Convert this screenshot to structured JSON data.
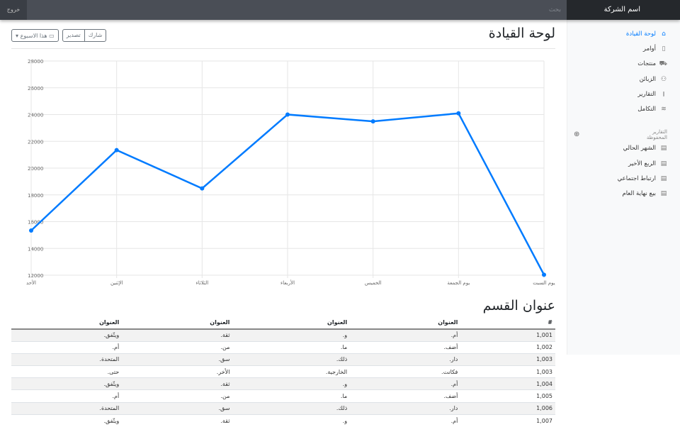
{
  "topbar": {
    "brand": "اسم الشركة",
    "search_placeholder": "بحث",
    "signout": "خروج"
  },
  "sidebar": {
    "items": [
      {
        "label": "لوحة القيادة",
        "icon": "home-icon",
        "active": true
      },
      {
        "label": "أوامر",
        "icon": "file-icon"
      },
      {
        "label": "منتجات",
        "icon": "cart-icon"
      },
      {
        "label": "الزبائن",
        "icon": "users-icon"
      },
      {
        "label": "التقارير",
        "icon": "bar-chart-icon"
      },
      {
        "label": "التكامل",
        "icon": "layers-icon"
      }
    ],
    "saved_heading": "التقارير المحفوظة",
    "saved": [
      {
        "label": "الشهر الحالي"
      },
      {
        "label": "الربع الأخير"
      },
      {
        "label": "ارتباط اجتماعي"
      },
      {
        "label": "بيع نهاية العام"
      }
    ]
  },
  "header": {
    "title": "لوحة القيادة",
    "share": "شارك",
    "export": "تصدير",
    "period": "هذا الاسبوع"
  },
  "chart_data": {
    "type": "line",
    "categories": [
      "الأحد",
      "الإثنين",
      "الثلاثاء",
      "الأربعاء",
      "الخميس",
      "يوم الجمعة",
      "يوم السبت"
    ],
    "values": [
      15339,
      21345,
      18483,
      24003,
      23489,
      24092,
      12034
    ],
    "ylim": [
      12000,
      28000
    ],
    "yticks": [
      12000,
      14000,
      16000,
      18000,
      20000,
      22000,
      24000,
      26000,
      28000
    ],
    "grid": true,
    "color": "#007bff"
  },
  "section": {
    "title": "عنوان القسم",
    "headers": [
      "#",
      "العنوان",
      "العنوان",
      "العنوان",
      "العنوان"
    ],
    "rows": [
      [
        "1,001",
        "أم.",
        "و.",
        "ثقة.",
        "ويتّفق."
      ],
      [
        "1,002",
        "أضف.",
        "ما.",
        "من.",
        "أم."
      ],
      [
        "1,003",
        "دار.",
        "ذلك.",
        "سق.",
        "المتحدة."
      ],
      [
        "1,003",
        "فكانت.",
        "الخارجية.",
        "الأخر.",
        "حتى."
      ],
      [
        "1,004",
        "أم.",
        "و.",
        "ثقة.",
        "ويتّفق."
      ],
      [
        "1,005",
        "أضف.",
        "ما.",
        "من.",
        "أم."
      ],
      [
        "1,006",
        "دار.",
        "ذلك.",
        "سق.",
        "المتحدة."
      ],
      [
        "1,007",
        "أم.",
        "و.",
        "ثقة.",
        "ويتّفق."
      ]
    ]
  }
}
